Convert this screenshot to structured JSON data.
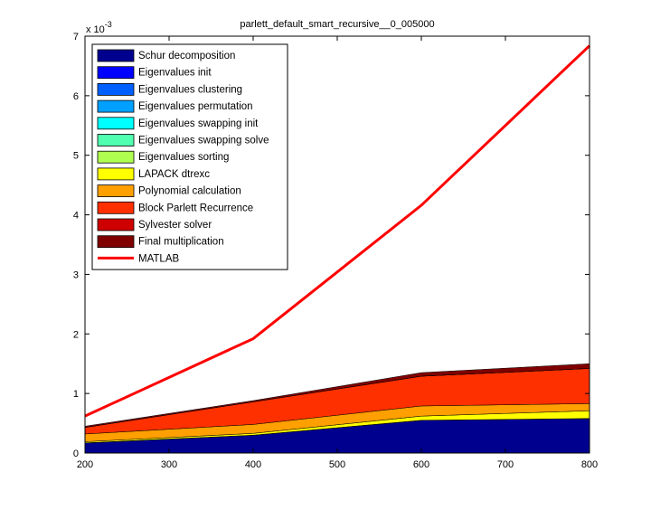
{
  "chart_data": {
    "type": "area",
    "title": "parlett_default_smart_recursive__0_005000",
    "xlabel": "",
    "ylabel": "",
    "exponent_label": "x 10",
    "exponent_power": "-3",
    "xlim": [
      200,
      800
    ],
    "ylim": [
      0,
      7
    ],
    "y_scale_note": "values in units of 1e-3",
    "x": [
      200,
      400,
      600,
      800
    ],
    "x_ticks": [
      "200",
      "300",
      "400",
      "500",
      "600",
      "700",
      "800"
    ],
    "y_ticks": [
      "0",
      "1",
      "2",
      "3",
      "4",
      "5",
      "6",
      "7"
    ],
    "legend_position": "top-left",
    "stacked_series": [
      {
        "name": "Schur decomposition",
        "color": "#00008f",
        "values": [
          0.17,
          0.3,
          0.55,
          0.58
        ]
      },
      {
        "name": "Eigenvalues init",
        "color": "#0000ff",
        "values": [
          0.0,
          0.0,
          0.0,
          0.0
        ]
      },
      {
        "name": "Eigenvalues clustering",
        "color": "#0060ff",
        "values": [
          0.0,
          0.0,
          0.0,
          0.0
        ]
      },
      {
        "name": "Eigenvalues permutation",
        "color": "#00a0ff",
        "values": [
          0.0,
          0.0,
          0.0,
          0.0
        ]
      },
      {
        "name": "Eigenvalues swapping init",
        "color": "#00ffff",
        "values": [
          0.0,
          0.0,
          0.0,
          0.0
        ]
      },
      {
        "name": "Eigenvalues swapping solve",
        "color": "#50ffaf",
        "values": [
          0.0,
          0.0,
          0.0,
          0.0
        ]
      },
      {
        "name": "Eigenvalues sorting",
        "color": "#afff50",
        "values": [
          0.0,
          0.0,
          0.0,
          0.0
        ]
      },
      {
        "name": "LAPACK dtrexc",
        "color": "#ffff00",
        "values": [
          0.02,
          0.03,
          0.07,
          0.13
        ]
      },
      {
        "name": "Polynomial calculation",
        "color": "#ff9f00",
        "values": [
          0.13,
          0.15,
          0.17,
          0.12
        ]
      },
      {
        "name": "Block Parlett Recurrence",
        "color": "#ff3000",
        "values": [
          0.11,
          0.38,
          0.5,
          0.59
        ]
      },
      {
        "name": "Sylvester solver",
        "color": "#cf0000",
        "values": [
          0.0,
          0.0,
          0.0,
          0.0
        ]
      },
      {
        "name": "Final multiplication",
        "color": "#800000",
        "values": [
          0.02,
          0.02,
          0.06,
          0.08
        ]
      }
    ],
    "line_series": {
      "name": "MATLAB",
      "color": "#ff0000",
      "values": [
        0.62,
        1.92,
        4.16,
        6.84
      ]
    }
  }
}
